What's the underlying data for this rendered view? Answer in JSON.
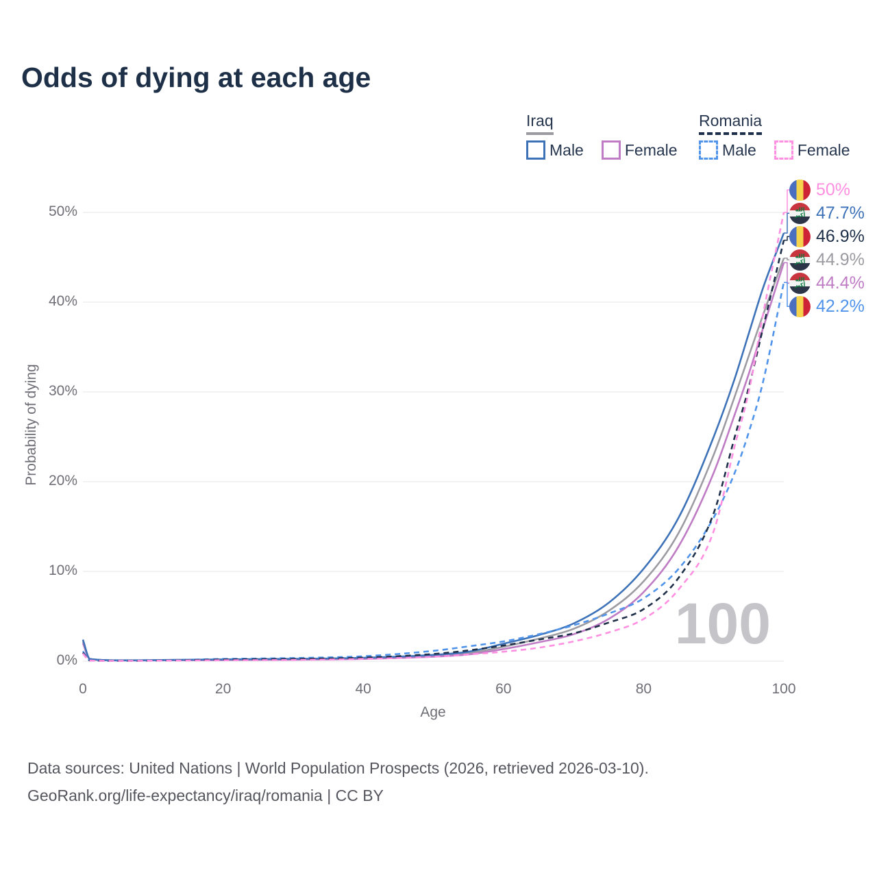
{
  "title": "Odds of dying at each age",
  "legend": {
    "iraq_label": "Iraq",
    "romania_label": "Romania",
    "iraq_male_label": "Male",
    "iraq_female_label": "Female",
    "romania_male_label": "Male",
    "romania_female_label": "Female"
  },
  "axes": {
    "y_title": "Probability of dying",
    "x_title": "Age",
    "y_tick_labels": [
      "0%",
      "10%",
      "20%",
      "30%",
      "40%",
      "50%"
    ],
    "x_tick_labels": [
      "0",
      "20",
      "40",
      "60",
      "80",
      "100"
    ]
  },
  "watermark": "100",
  "footer": {
    "line1": "Data sources: United Nations | World Population Prospects (2026, retrieved 2026-03-10).",
    "line2": "GeoRank.org/life-expectancy/iraq/romania | CC BY"
  },
  "colors": {
    "iraq_male": "#3d72b8",
    "iraq_female": "#bf7cc5",
    "iraq_both": "#9b9ba1",
    "romania_male": "#4f93ea",
    "romania_both": "#1e2f49",
    "romania_female": "#ff8fe1",
    "gridline": "#ededf0",
    "title_text": "#1e3048",
    "axis_text": "#6e6e76",
    "watermark_text": "#c5c5c9"
  },
  "chart_data": {
    "type": "line",
    "title": "Odds of dying at each age",
    "xlabel": "Age",
    "ylabel": "Probability of dying",
    "xlim": [
      0,
      100
    ],
    "ylim_percent": [
      0,
      52
    ],
    "x_ticks": [
      0,
      20,
      40,
      60,
      80,
      100
    ],
    "y_ticks_percent": [
      0,
      10,
      20,
      30,
      40,
      50
    ],
    "grid": "horizontal",
    "legend_position": "top-right",
    "ages": [
      0,
      1,
      5,
      10,
      20,
      30,
      40,
      50,
      55,
      60,
      65,
      70,
      75,
      80,
      85,
      90,
      93,
      95,
      97,
      100
    ],
    "series": [
      {
        "name": "Iraq Both sexes",
        "country": "iraq",
        "sex": "both",
        "style": "solid",
        "color": "#9b9ba1",
        "end_label": "44.9%",
        "end_value": 44.9,
        "values_percent": [
          2.2,
          0.24,
          0.09,
          0.1,
          0.16,
          0.21,
          0.31,
          0.6,
          0.9,
          1.6,
          2.5,
          3.6,
          5.6,
          8.9,
          14.3,
          23.0,
          29.5,
          34.0,
          38.5,
          44.9
        ]
      },
      {
        "name": "Iraq Female",
        "country": "iraq",
        "sex": "female",
        "style": "solid",
        "color": "#bf7cc5",
        "end_label": "44.4%",
        "end_value": 44.4,
        "values_percent": [
          2.0,
          0.22,
          0.08,
          0.09,
          0.12,
          0.16,
          0.25,
          0.5,
          0.75,
          1.35,
          2.1,
          3.0,
          4.7,
          7.7,
          12.8,
          21.0,
          27.5,
          32.0,
          37.0,
          44.4
        ]
      },
      {
        "name": "Iraq Male",
        "country": "iraq",
        "sex": "male",
        "style": "solid",
        "color": "#3d72b8",
        "end_label": "47.7%",
        "end_value": 47.7,
        "values_percent": [
          2.4,
          0.25,
          0.1,
          0.12,
          0.2,
          0.26,
          0.38,
          0.7,
          1.05,
          1.95,
          2.9,
          4.2,
          6.5,
          10.3,
          16.0,
          25.0,
          31.5,
          36.5,
          41.5,
          47.7
        ]
      },
      {
        "name": "Romania Male",
        "country": "romania",
        "sex": "male",
        "style": "dashed",
        "color": "#4f93ea",
        "end_label": "42.2%",
        "end_value": 42.2,
        "values_percent": [
          1.1,
          0.1,
          0.05,
          0.08,
          0.25,
          0.35,
          0.55,
          1.15,
          1.65,
          2.2,
          3.0,
          4.0,
          5.3,
          7.0,
          10.3,
          16.0,
          21.0,
          25.5,
          31.0,
          42.2
        ]
      },
      {
        "name": "Romania Both sexes",
        "country": "romania",
        "sex": "both",
        "style": "dashed",
        "color": "#1e2f49",
        "end_label": "46.9%",
        "end_value": 46.9,
        "values_percent": [
          0.95,
          0.08,
          0.04,
          0.06,
          0.18,
          0.25,
          0.4,
          0.8,
          1.2,
          1.75,
          2.4,
          3.1,
          4.3,
          5.8,
          9.3,
          16.5,
          25.0,
          30.5,
          37.0,
          46.9
        ]
      },
      {
        "name": "Romania Female",
        "country": "romania",
        "sex": "female",
        "style": "dashed",
        "color": "#ff8fe1",
        "end_label": "50%",
        "end_value": 50.0,
        "values_percent": [
          0.85,
          0.07,
          0.03,
          0.05,
          0.1,
          0.14,
          0.25,
          0.5,
          0.75,
          1.05,
          1.5,
          2.2,
          3.2,
          4.7,
          8.0,
          14.5,
          24.0,
          30.0,
          38.5,
          50.0
        ]
      }
    ]
  },
  "flag_alt": {
    "iraq": "iraq-flag",
    "romania": "romania-flag"
  },
  "iraq_flag_script": "الله أكبر"
}
